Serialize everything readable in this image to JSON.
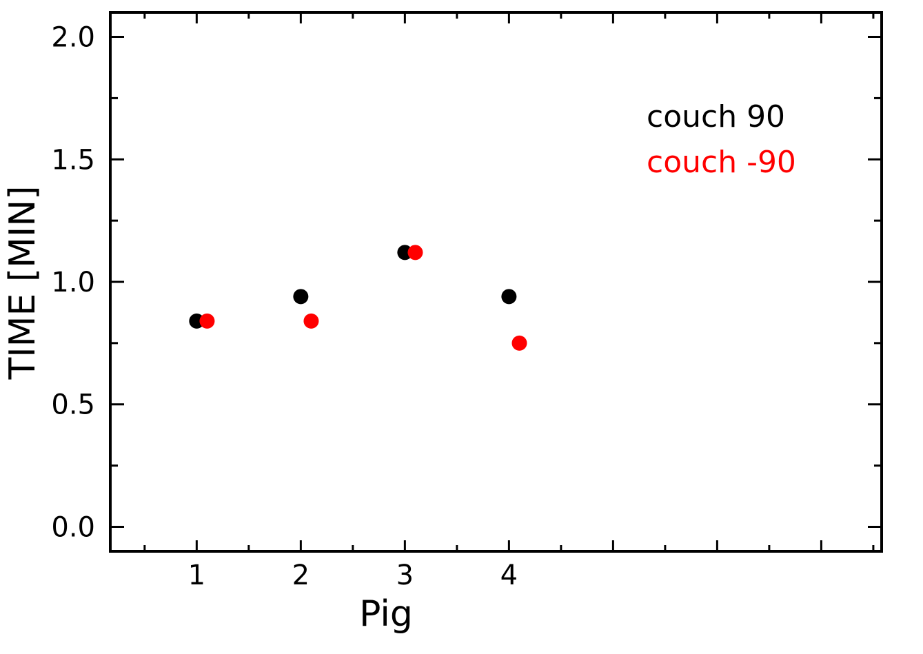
{
  "chart_data": {
    "type": "scatter",
    "xlabel": "Pig",
    "ylabel": "TIME [MIN]",
    "xlim": [
      0.17,
      7.58
    ],
    "ylim": [
      -0.1,
      2.1
    ],
    "x_ticks": [
      1,
      2,
      3,
      4
    ],
    "y_ticks": [
      "0.0",
      "0.5",
      "1.0",
      "1.5",
      "2.0"
    ],
    "grid": false,
    "legend_position": "top-right",
    "series": [
      {
        "name": "couch 90",
        "color": "#000000",
        "points": [
          {
            "x": 1.0,
            "y": 0.84
          },
          {
            "x": 2.0,
            "y": 0.94
          },
          {
            "x": 3.0,
            "y": 1.12
          },
          {
            "x": 4.0,
            "y": 0.94
          }
        ]
      },
      {
        "name": "couch -90",
        "color": "#ff0000",
        "points": [
          {
            "x": 1.1,
            "y": 0.84
          },
          {
            "x": 2.1,
            "y": 0.84
          },
          {
            "x": 3.1,
            "y": 1.12
          },
          {
            "x": 4.1,
            "y": 0.75
          }
        ]
      }
    ]
  }
}
